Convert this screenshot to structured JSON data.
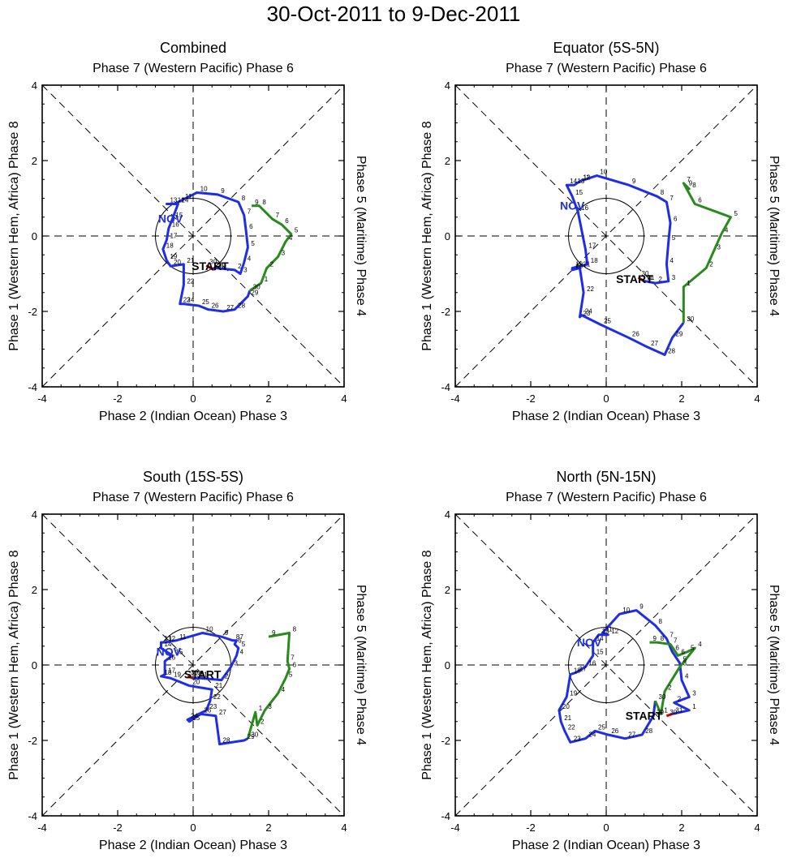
{
  "title": "30-Oct-2011 to 9-Dec-2011",
  "labels": {
    "top": "Phase 7 (Western Pacific) Phase 6",
    "bottom": "Phase 2 (Indian Ocean) Phase 3",
    "left": "Phase 1 (Western Hem, Africa) Phase 8",
    "right": "Phase 5 (Maritime) Phase 4",
    "start": "START",
    "month": "NOV"
  },
  "colors": {
    "oct": "#cc0000",
    "nov": "#1f2ee6",
    "dec": "#2a8a1e",
    "axis": "#000000"
  },
  "chart_data": [
    {
      "type": "line",
      "title": "Combined",
      "xlim": [
        -4,
        4
      ],
      "ylim": [
        -4,
        4
      ],
      "xticks": [
        -4,
        -2,
        0,
        2,
        4
      ],
      "yticks": [
        -4,
        -2,
        0,
        2,
        4
      ],
      "month_label_pos": [
        -0.6,
        0.35
      ],
      "start_label_pos": [
        0.45,
        -0.9
      ],
      "oct": {
        "days": [
          30,
          31
        ],
        "x": [
          0.35,
          0.55
        ],
        "y": [
          -0.78,
          -0.9
        ]
      },
      "nov": {
        "days": [
          1,
          2,
          3,
          4,
          5,
          6,
          7,
          8,
          9,
          10,
          11,
          12,
          13,
          14,
          15,
          16,
          17,
          18,
          19,
          20,
          21,
          22,
          23,
          24,
          25,
          26,
          27,
          28,
          29,
          30
        ],
        "x": [
          0.6,
          1.1,
          1.25,
          1.35,
          1.45,
          1.4,
          1.35,
          1.2,
          0.65,
          0.1,
          -0.3,
          -0.5,
          -0.7,
          -0.4,
          -0.55,
          -0.65,
          -0.7,
          -0.8,
          -0.7,
          -0.6,
          -0.25,
          -0.25,
          -0.35,
          -0.25,
          0.15,
          0.4,
          0.8,
          1.1,
          1.45,
          1.5
        ],
        "y": [
          -0.85,
          -0.9,
          -1.0,
          -0.7,
          -0.3,
          0.15,
          0.55,
          0.9,
          1.1,
          1.15,
          0.95,
          0.85,
          0.85,
          0.85,
          0.45,
          0.2,
          -0.1,
          -0.35,
          -0.65,
          -0.8,
          -0.75,
          -1.3,
          -1.8,
          -1.8,
          -1.85,
          -1.95,
          -2.0,
          -1.95,
          -1.6,
          -1.45
        ]
      },
      "dec": {
        "days": [
          1,
          2,
          3,
          4,
          5,
          6,
          7,
          8,
          9
        ],
        "x": [
          1.8,
          1.95,
          2.25,
          2.45,
          2.6,
          2.35,
          2.1,
          1.75,
          1.55
        ],
        "y": [
          -1.25,
          -0.85,
          -0.55,
          -0.15,
          0.05,
          0.3,
          0.45,
          0.8,
          0.8
        ]
      }
    },
    {
      "type": "line",
      "title": "Equator (5S-5N)",
      "xlim": [
        -4,
        4
      ],
      "ylim": [
        -4,
        4
      ],
      "xticks": [
        -4,
        -2,
        0,
        2,
        4
      ],
      "yticks": [
        -4,
        -2,
        0,
        2,
        4
      ],
      "month_label_pos": [
        -0.9,
        0.7
      ],
      "start_label_pos": [
        0.75,
        -1.25
      ],
      "oct": {
        "days": [
          30,
          31
        ],
        "x": [
          0.85,
          1.0
        ],
        "y": [
          -1.1,
          -1.2
        ]
      },
      "nov": {
        "days": [
          1,
          2,
          3,
          4,
          5,
          6,
          7,
          8,
          9,
          10,
          11,
          12,
          13,
          14,
          15,
          16,
          17,
          18,
          19,
          20,
          21,
          22,
          23,
          24,
          25,
          26,
          27,
          28,
          29,
          30
        ],
        "x": [
          1.05,
          1.3,
          1.65,
          1.6,
          1.65,
          1.7,
          1.6,
          1.35,
          0.6,
          -0.25,
          -0.7,
          -0.7,
          -0.85,
          -1.05,
          -0.9,
          -0.75,
          -0.55,
          -0.5,
          -0.9,
          -0.9,
          -0.7,
          -0.6,
          -0.7,
          -0.65,
          -0.15,
          0.6,
          1.1,
          1.55,
          1.75,
          2.05
        ],
        "y": [
          -1.2,
          -1.25,
          -1.2,
          -0.75,
          -0.15,
          0.35,
          0.9,
          1.05,
          1.35,
          1.6,
          1.45,
          1.45,
          1.35,
          1.35,
          1.05,
          0.65,
          -0.35,
          -0.75,
          -0.85,
          -0.9,
          -0.85,
          -1.5,
          -2.15,
          -2.1,
          -2.35,
          -2.7,
          -2.95,
          -3.15,
          -2.7,
          -2.3
        ]
      },
      "dec": {
        "days": [
          1,
          2,
          3,
          4,
          5,
          6,
          7,
          8,
          9
        ],
        "x": [
          2.05,
          2.65,
          2.85,
          3.05,
          3.3,
          2.35,
          2.05,
          2.2,
          2.1
        ],
        "y": [
          -1.35,
          -0.85,
          -0.4,
          0.05,
          0.5,
          0.85,
          1.4,
          1.25,
          1.3
        ]
      }
    },
    {
      "type": "line",
      "title": "South (15S-5S)",
      "xlim": [
        -4,
        4
      ],
      "ylim": [
        -4,
        4
      ],
      "xticks": [
        -4,
        -2,
        0,
        2,
        4
      ],
      "yticks": [
        -4,
        -2,
        0,
        2,
        4
      ],
      "month_label_pos": [
        -0.65,
        0.25
      ],
      "start_label_pos": [
        0.25,
        -0.35
      ],
      "oct": {
        "days": [
          30,
          31
        ],
        "x": [
          -0.15,
          0.0
        ],
        "y": [
          -0.3,
          -0.35
        ]
      },
      "nov": {
        "days": [
          1,
          2,
          3,
          4,
          5,
          6,
          7,
          8,
          9,
          10,
          11,
          12,
          13,
          14,
          15,
          16,
          17,
          18,
          19,
          20,
          21,
          22,
          23,
          24,
          25,
          26,
          27,
          28,
          29,
          30
        ],
        "x": [
          0.2,
          0.75,
          1.0,
          1.15,
          1.2,
          1.1,
          1.15,
          1.05,
          0.75,
          0.25,
          -0.45,
          -0.75,
          -0.85,
          -0.85,
          -0.55,
          -0.75,
          -0.75,
          -0.85,
          -0.6,
          -0.1,
          0.5,
          0.45,
          0.35,
          -0.15,
          -0.1,
          0.2,
          0.6,
          0.7,
          1.35,
          1.45
        ],
        "y": [
          -0.35,
          -0.4,
          -0.05,
          0.25,
          0.45,
          0.55,
          0.65,
          0.65,
          0.75,
          0.85,
          0.65,
          0.6,
          0.6,
          0.45,
          0.25,
          0.1,
          -0.25,
          -0.3,
          -0.35,
          -0.55,
          -0.65,
          -0.95,
          -1.2,
          -1.45,
          -1.5,
          -1.3,
          -1.35,
          -2.1,
          -2.0,
          -1.95
        ]
      },
      "dec": {
        "days": [
          1,
          2,
          3,
          4,
          5,
          6,
          7,
          8,
          9
        ],
        "x": [
          1.65,
          1.7,
          1.9,
          2.25,
          2.45,
          2.55,
          2.5,
          2.55,
          2.0
        ],
        "y": [
          -1.25,
          -1.6,
          -1.2,
          -0.75,
          -0.35,
          -0.1,
          0.1,
          0.85,
          0.75
        ]
      }
    },
    {
      "type": "line",
      "title": "North (5N-15N)",
      "xlim": [
        -4,
        4
      ],
      "ylim": [
        -4,
        4
      ],
      "xticks": [
        -4,
        -2,
        0,
        2,
        4
      ],
      "yticks": [
        -4,
        -2,
        0,
        2,
        4
      ],
      "month_label_pos": [
        -0.45,
        0.5
      ],
      "start_label_pos": [
        1.0,
        -1.45
      ],
      "oct": {
        "days": [
          30,
          31
        ],
        "x": [
          1.6,
          1.75
        ],
        "y": [
          -1.35,
          -1.3
        ]
      },
      "nov": {
        "days": [
          1,
          2,
          3,
          4,
          5,
          6,
          7,
          8,
          9,
          10,
          11,
          12,
          13,
          14,
          15,
          16,
          17,
          18,
          19,
          20,
          21,
          22,
          23,
          24,
          25,
          26,
          27,
          28,
          29,
          30
        ],
        "x": [
          2.2,
          1.8,
          2.2,
          2.0,
          1.95,
          1.75,
          1.6,
          1.3,
          0.8,
          0.35,
          -0.1,
          0.05,
          -0.2,
          -0.35,
          -0.35,
          -0.55,
          -0.8,
          -0.95,
          -1.05,
          -1.25,
          -1.2,
          -1.1,
          -0.95,
          -0.55,
          -0.3,
          0.05,
          0.5,
          0.95,
          1.25,
          1.3
        ],
        "y": [
          -1.2,
          -1.0,
          -0.85,
          -0.4,
          0.05,
          0.35,
          0.7,
          1.05,
          1.45,
          1.35,
          0.85,
          0.8,
          0.8,
          0.6,
          0.25,
          -0.05,
          -0.2,
          -0.25,
          -0.85,
          -1.2,
          -1.5,
          -1.75,
          -2.05,
          -1.95,
          -1.75,
          -1.85,
          -1.95,
          -1.85,
          -1.35,
          -0.95
        ]
      },
      "dec": {
        "days": [
          1,
          2,
          3,
          4,
          5,
          6,
          7,
          8,
          9
        ],
        "x": [
          1.45,
          1.55,
          1.95,
          2.35,
          2.15,
          1.9,
          1.7,
          1.35,
          1.15
        ],
        "y": [
          -1.3,
          -0.7,
          -0.05,
          0.45,
          0.35,
          0.25,
          0.55,
          0.6,
          0.6
        ]
      }
    }
  ]
}
